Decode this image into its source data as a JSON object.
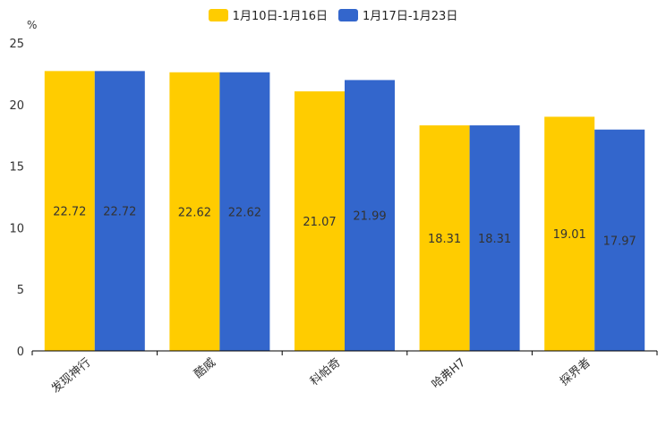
{
  "chart_data": {
    "type": "bar",
    "title": "",
    "unit": "%",
    "categories": [
      "发现神行",
      "酷威",
      "科帕奇",
      "哈弗H7",
      "探界者"
    ],
    "series": [
      {
        "name": "1月10日-1月16日",
        "color": "#FFCC00",
        "values": [
          22.72,
          22.62,
          21.07,
          18.31,
          19.01
        ]
      },
      {
        "name": "1月17日-1月23日",
        "color": "#3366CC",
        "values": [
          22.72,
          22.62,
          21.99,
          18.31,
          17.97
        ]
      }
    ],
    "ylim": [
      0,
      25
    ],
    "yticks": [
      0,
      5,
      10,
      15,
      20,
      25
    ],
    "xlabel": "",
    "ylabel": "",
    "legend_position": "top-center"
  }
}
